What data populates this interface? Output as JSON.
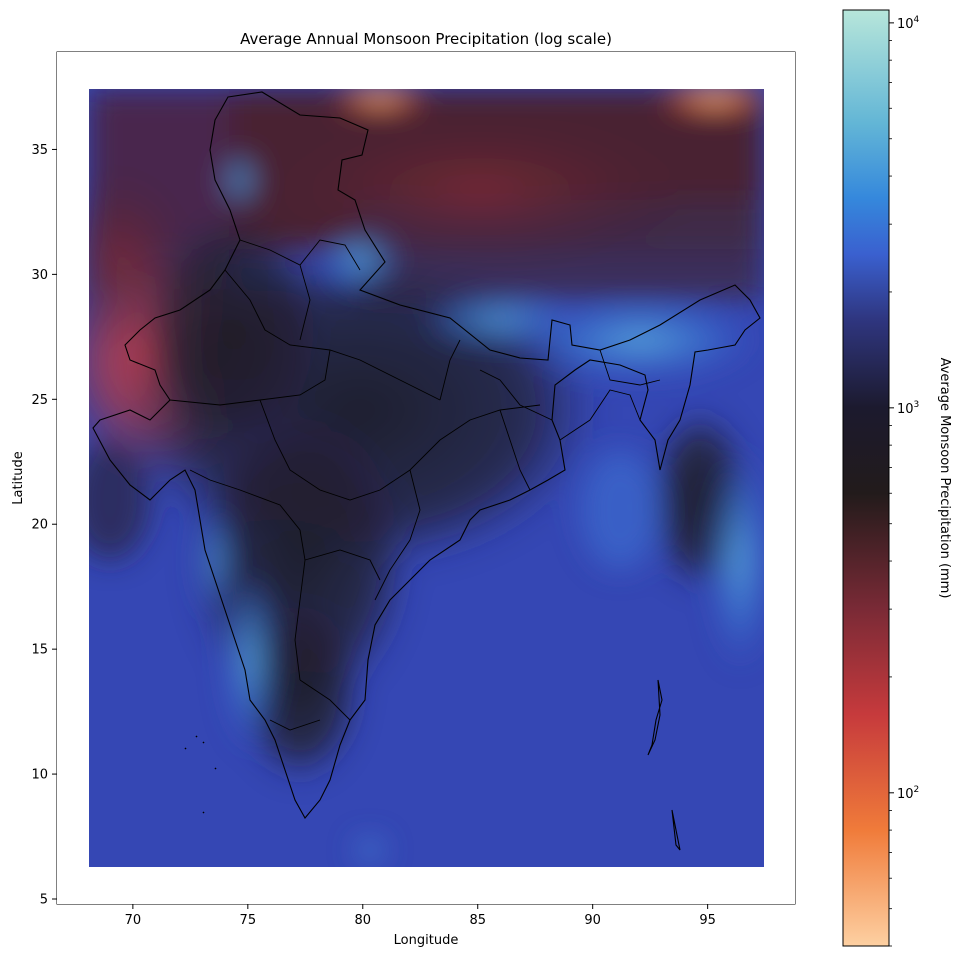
{
  "chart_data": {
    "type": "heatmap",
    "title": "Average Annual Monsoon Precipitation (log scale)",
    "xlabel": "Longitude",
    "ylabel": "Latitude",
    "xlim": [
      66.7,
      98.8
    ],
    "ylim": [
      4.8,
      38.9
    ],
    "x_ticks": [
      70,
      75,
      80,
      85,
      90,
      95
    ],
    "y_ticks": [
      5,
      10,
      15,
      20,
      25,
      30,
      35
    ],
    "data_extent": {
      "lon": [
        68,
        97.5
      ],
      "lat": [
        6.2,
        37.1
      ]
    },
    "color_scale": "log",
    "colorbar": {
      "label": "Average Monsoon Precipitation (mm)",
      "range": [
        40,
        10800
      ],
      "major_ticks": [
        {
          "value": 100,
          "base": "10",
          "exp": "2"
        },
        {
          "value": 1000,
          "base": "10",
          "exp": "3"
        },
        {
          "value": 10000,
          "base": "10",
          "exp": "4"
        }
      ],
      "colormap_stops": [
        {
          "value": 40,
          "color": "#fdd0a2"
        },
        {
          "value": 80,
          "color": "#f07b3a"
        },
        {
          "value": 160,
          "color": "#c63a3c"
        },
        {
          "value": 300,
          "color": "#7a2a36"
        },
        {
          "value": 600,
          "color": "#221b1b"
        },
        {
          "value": 1000,
          "color": "#1c1a2e"
        },
        {
          "value": 1700,
          "color": "#2f3680"
        },
        {
          "value": 2500,
          "color": "#3a60cf"
        },
        {
          "value": 3500,
          "color": "#3588dc"
        },
        {
          "value": 5500,
          "color": "#63b6d6"
        },
        {
          "value": 10800,
          "color": "#b7e6da"
        }
      ]
    },
    "field_samples": [
      {
        "lon": 72,
        "lat": 27,
        "value": 160
      },
      {
        "lon": 69,
        "lat": 33,
        "value": 280
      },
      {
        "lon": 85,
        "lat": 34,
        "value": 300
      },
      {
        "lon": 80,
        "lat": 37,
        "value": 80
      },
      {
        "lon": 96,
        "lat": 37,
        "value": 60
      },
      {
        "lon": 78,
        "lat": 23,
        "value": 1000
      },
      {
        "lon": 77,
        "lat": 17,
        "value": 900
      },
      {
        "lon": 74.5,
        "lat": 16,
        "value": 3500
      },
      {
        "lon": 87,
        "lat": 14,
        "value": 1800
      },
      {
        "lon": 72,
        "lat": 10,
        "value": 1700
      },
      {
        "lon": 92,
        "lat": 27.5,
        "value": 4500
      },
      {
        "lon": 96,
        "lat": 17,
        "value": 3000
      },
      {
        "lon": 80,
        "lat": 30,
        "value": 3000
      },
      {
        "lon": 76,
        "lat": 34.5,
        "value": 1700
      }
    ]
  }
}
